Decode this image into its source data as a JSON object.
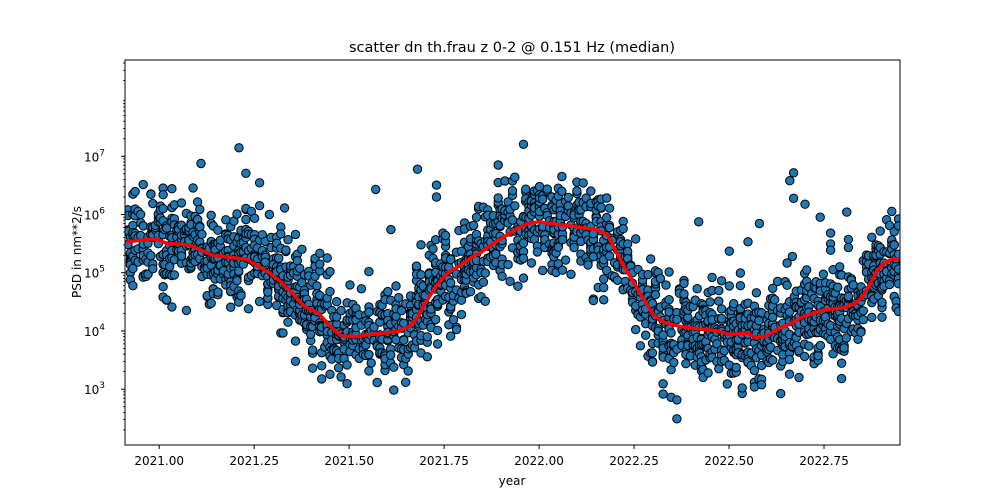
{
  "chart_data": {
    "type": "scatter",
    "title": "scatter dn th.frau z 0-2 @ 0.151 Hz (median)",
    "xlabel": "year",
    "ylabel": "PSD in nm**2/s",
    "xlim": [
      2020.91,
      2022.95
    ],
    "ylim": [
      110,
      450000000
    ],
    "yscale": "log",
    "grid": false,
    "x_ticks": [
      {
        "value": 2021.0,
        "label": "2021.00"
      },
      {
        "value": 2021.25,
        "label": "2021.25"
      },
      {
        "value": 2021.5,
        "label": "2021.50"
      },
      {
        "value": 2021.75,
        "label": "2021.75"
      },
      {
        "value": 2022.0,
        "label": "2022.00"
      },
      {
        "value": 2022.25,
        "label": "2022.25"
      },
      {
        "value": 2022.5,
        "label": "2022.50"
      },
      {
        "value": 2022.75,
        "label": "2022.75"
      }
    ],
    "y_ticks": [
      {
        "value": 1000,
        "base": "10",
        "exp": "3"
      },
      {
        "value": 10000,
        "base": "10",
        "exp": "4"
      },
      {
        "value": 100000,
        "base": "10",
        "exp": "5"
      },
      {
        "value": 1000000,
        "base": "10",
        "exp": "6"
      },
      {
        "value": 10000000,
        "base": "10",
        "exp": "7"
      }
    ],
    "scatter_style": {
      "fill": "#1f77b4",
      "stroke": "#000000"
    },
    "median_line_color": "#ff0000",
    "median_line": {
      "x": [
        2020.915,
        2020.95,
        2020.99,
        2021.02,
        2021.05,
        2021.08,
        2021.1,
        2021.12,
        2021.14,
        2021.17,
        2021.2,
        2021.23,
        2021.26,
        2021.29,
        2021.32,
        2021.35,
        2021.38,
        2021.42,
        2021.45,
        2021.48,
        2021.52,
        2021.56,
        2021.6,
        2021.63,
        2021.66,
        2021.68,
        2021.7,
        2021.73,
        2021.76,
        2021.79,
        2021.82,
        2021.85,
        2021.88,
        2021.91,
        2021.94,
        2021.97,
        2022.0,
        2022.03,
        2022.07,
        2022.11,
        2022.15,
        2022.18,
        2022.2,
        2022.22,
        2022.24,
        2022.27,
        2022.3,
        2022.33,
        2022.37,
        2022.41,
        2022.44,
        2022.47,
        2022.5,
        2022.53,
        2022.55,
        2022.57,
        2022.6,
        2022.63,
        2022.66,
        2022.69,
        2022.72,
        2022.75,
        2022.78,
        2022.8,
        2022.83,
        2022.85,
        2022.87,
        2022.89,
        2022.91,
        2022.93,
        2022.95
      ],
      "y": [
        340000,
        360000,
        380000,
        320000,
        310000,
        300000,
        260000,
        230000,
        200000,
        190000,
        180000,
        170000,
        130000,
        100000,
        70000,
        45000,
        27000,
        20000,
        12000,
        8200,
        8000,
        8800,
        9300,
        10000,
        12000,
        17000,
        30000,
        60000,
        100000,
        130000,
        180000,
        230000,
        320000,
        420000,
        560000,
        700000,
        750000,
        700000,
        650000,
        600000,
        550000,
        450000,
        250000,
        140000,
        85000,
        40000,
        19000,
        14000,
        12000,
        11000,
        10500,
        10000,
        8700,
        9000,
        9200,
        7600,
        8300,
        11000,
        13000,
        17000,
        20000,
        23000,
        24000,
        25000,
        29000,
        38000,
        60000,
        110000,
        150000,
        170000,
        175000
      ]
    },
    "outlier_points": {
      "x": [
        2021.11,
        2021.21,
        2021.29,
        2021.33,
        2021.57,
        2021.61,
        2021.68,
        2021.73,
        2021.73,
        2022.06,
        2022.06,
        2022.42,
        2022.55,
        2022.58,
        2022.66,
        2022.67,
        2022.67,
        2022.7,
        2022.74,
        2022.81
      ],
      "y": [
        7500000,
        14000000,
        1000000,
        1300000,
        2700000,
        550000,
        6000000,
        3200000,
        2000000,
        4500000,
        2500000,
        750000,
        340000,
        700000,
        3800000,
        5200000,
        1900000,
        1500000,
        900000,
        1100000
      ]
    }
  }
}
